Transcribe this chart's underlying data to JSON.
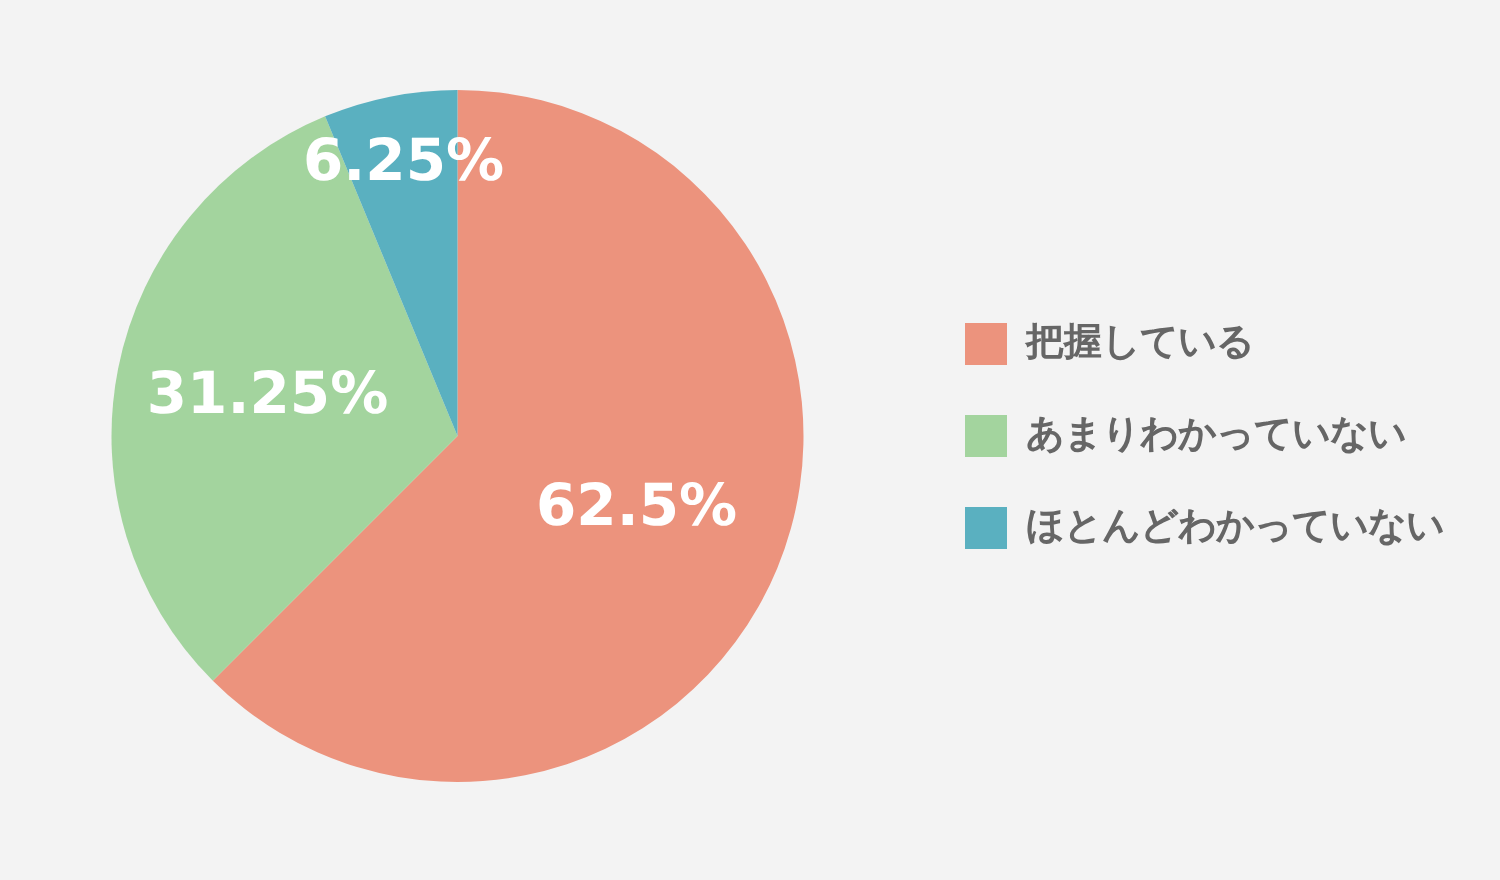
{
  "chart_data": {
    "type": "pie",
    "categories": [
      "把握している",
      "あまりわかっていない",
      "ほとんどわかっていない"
    ],
    "values": [
      62.5,
      31.25,
      6.25
    ],
    "colors": [
      "#ec937d",
      "#a3d49e",
      "#5ab0c0"
    ],
    "value_labels": [
      "62.5%",
      "31.25%",
      "6.25%"
    ],
    "legend": "right"
  }
}
